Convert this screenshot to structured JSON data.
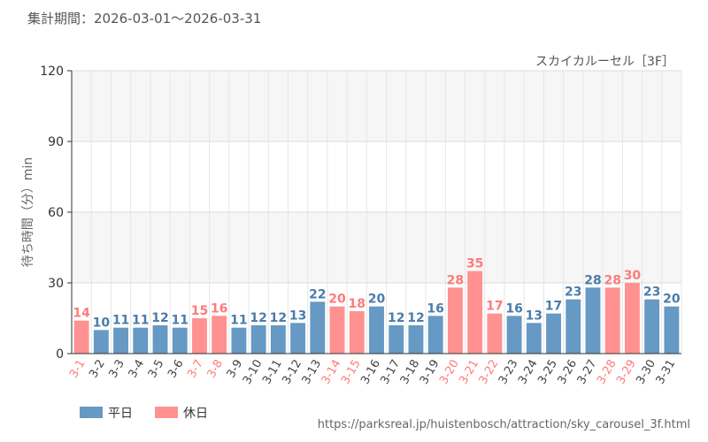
{
  "header": {
    "period": "集計期間：2026-03-01〜2026-03-31"
  },
  "source_url": "https://parksreal.jp/huistenbosch/attraction/sky_carousel_3f.html",
  "colors": {
    "weekday": "#6699c4",
    "holiday": "#ff9191",
    "weekday_text": "#4a7cab",
    "holiday_text": "#ff7a7a"
  },
  "chart_data": {
    "type": "bar",
    "title": "スカイカルーセル［3F］",
    "ylabel": "待ち時間（分）min",
    "xlabel": "",
    "ylim": [
      0,
      120
    ],
    "yticks": [
      0,
      30,
      60,
      90,
      120
    ],
    "grid": true,
    "legend_placement": "bottom-left",
    "categories": [
      "3-1",
      "3-2",
      "3-3",
      "3-4",
      "3-5",
      "3-6",
      "3-7",
      "3-8",
      "3-9",
      "3-10",
      "3-11",
      "3-12",
      "3-13",
      "3-14",
      "3-15",
      "3-16",
      "3-17",
      "3-18",
      "3-19",
      "3-20",
      "3-21",
      "3-22",
      "3-23",
      "3-24",
      "3-25",
      "3-26",
      "3-27",
      "3-28",
      "3-29",
      "3-30",
      "3-31"
    ],
    "values": [
      14,
      10,
      11,
      11,
      12,
      11,
      15,
      16,
      11,
      12,
      12,
      13,
      22,
      20,
      18,
      20,
      12,
      12,
      16,
      28,
      35,
      17,
      16,
      13,
      17,
      23,
      28,
      28,
      30,
      23,
      20
    ],
    "day_type": [
      "holiday",
      "weekday",
      "weekday",
      "weekday",
      "weekday",
      "weekday",
      "holiday",
      "holiday",
      "weekday",
      "weekday",
      "weekday",
      "weekday",
      "weekday",
      "holiday",
      "holiday",
      "weekday",
      "weekday",
      "weekday",
      "weekday",
      "holiday",
      "holiday",
      "holiday",
      "weekday",
      "weekday",
      "weekday",
      "weekday",
      "weekday",
      "holiday",
      "holiday",
      "weekday",
      "weekday"
    ],
    "legend": [
      {
        "name": "平日",
        "key": "weekday"
      },
      {
        "name": "休日",
        "key": "holiday"
      }
    ]
  }
}
